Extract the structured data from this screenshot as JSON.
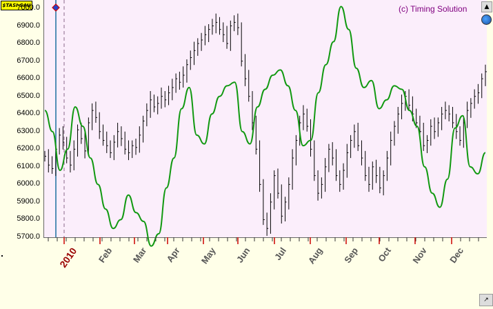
{
  "ticker": "$TASI-SAU",
  "copyright": "(c) Timing Solution",
  "colors": {
    "price": "#000000",
    "projection": "#119911",
    "background": "#fbeefb",
    "marker": "#1a6fa0"
  },
  "icons": {
    "up_button": "up-arrow-icon",
    "globe": "globe-icon",
    "corner_button": "arrow-icon"
  },
  "chart_data": {
    "type": "line",
    "x_axis": {
      "year_label": "2010",
      "months": [
        "Feb",
        "Mar",
        "Apr",
        "May",
        "Jun",
        "Jul",
        "Aug",
        "Sep",
        "Oct",
        "Nov",
        "Dec"
      ]
    },
    "y_ticks": [
      "7000.0",
      "6900.0",
      "6800.0",
      "6700.0",
      "6600.0",
      "6500.0",
      "6400.0",
      "6300.0",
      "6200.0",
      "6100.0",
      "6000.0",
      "5900.0",
      "5800.0",
      "5700.0"
    ],
    "ylim": [
      5700,
      7000
    ],
    "series": [
      {
        "kind": "price-bars",
        "values": [
          6160,
          6110,
          6090,
          6200,
          6280,
          6240,
          6150,
          6110,
          6200,
          6310,
          6260,
          6190,
          6350,
          6420,
          6380,
          6300,
          6250,
          6220,
          6180,
          6240,
          6300,
          6260,
          6200,
          6180,
          6220,
          6210,
          6280,
          6360,
          6420,
          6480,
          6440,
          6460,
          6500,
          6480,
          6520,
          6550,
          6600,
          6580,
          6620,
          6680,
          6720,
          6760,
          6800,
          6820,
          6850,
          6880,
          6900,
          6920,
          6880,
          6850,
          6800,
          6900,
          6920,
          6890,
          6700,
          6600,
          6500,
          6350,
          6200,
          6000,
          5800,
          5750,
          5900,
          6050,
          5950,
          5820,
          5900,
          6000,
          6150,
          6250,
          6350,
          6400,
          6330,
          6200,
          6050,
          5950,
          6000,
          6100,
          6200,
          6150,
          6050,
          6000,
          6080,
          6180,
          6250,
          6300,
          6220,
          6150,
          6050,
          6000,
          6100,
          6050,
          5980,
          6050,
          6150,
          6250,
          6330,
          6400,
          6460,
          6500,
          6450,
          6400,
          6350,
          6300,
          6220,
          6250,
          6330,
          6300,
          6350,
          6400,
          6420,
          6400,
          6350,
          6300,
          6250,
          6350,
          6420,
          6460,
          6500,
          6520,
          6600,
          6640
        ]
      },
      {
        "kind": "projection-line",
        "values": [
          6420,
          6300,
          6080,
          6200,
          6440,
          6330,
          6150,
          6000,
          5860,
          5750,
          5800,
          5940,
          5840,
          5790,
          5650,
          5720,
          5980,
          6150,
          6430,
          6550,
          6280,
          6230,
          6400,
          6500,
          6560,
          6580,
          6300,
          6230,
          6440,
          6540,
          6620,
          6650,
          6560,
          6420,
          6220,
          6250,
          6520,
          6680,
          6810,
          7010,
          6880,
          6660,
          6550,
          6590,
          6430,
          6480,
          6560,
          6540,
          6420,
          6330,
          6100,
          5950,
          5870,
          6030,
          6320,
          6390,
          6100,
          6060,
          6180
        ]
      }
    ]
  }
}
